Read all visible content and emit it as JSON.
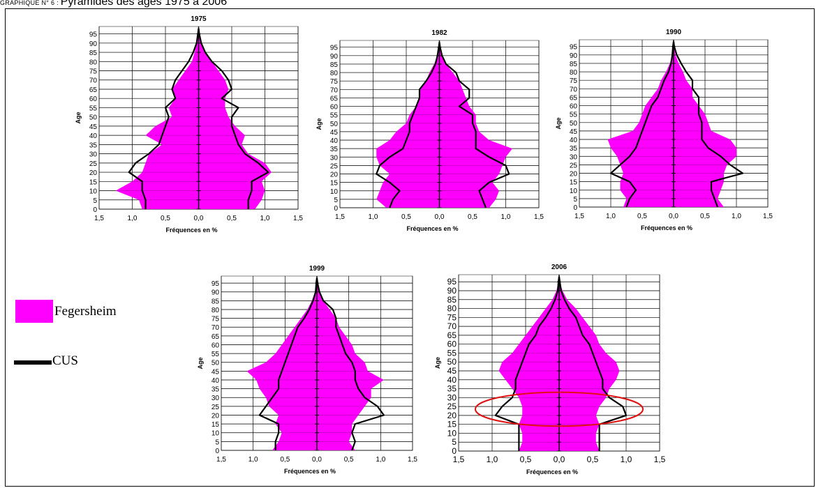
{
  "heading": {
    "prefix": "GRAPHIQUE N° 6 : ",
    "title": "Pyramides des âges 1975 à 2006"
  },
  "legend": {
    "items": [
      {
        "label": "Fegersheim",
        "color": "#ff00ff"
      },
      {
        "label": "CUS",
        "color": "#000000"
      }
    ]
  },
  "colors": {
    "fegersheim": "#ff00ff",
    "cus": "#000000",
    "highlight": "#e01010"
  },
  "chart_data": [
    {
      "type": "area",
      "title": "1975",
      "xlabel": "Fréquences en %",
      "ylabel": "Age",
      "xlim": [
        -1.5,
        1.5
      ],
      "ylim": [
        0,
        99
      ],
      "xticks": [
        "1,5",
        "1,0",
        "0,5",
        "0,0",
        "0,5",
        "1,0",
        "1,5"
      ],
      "yticks": [
        "0",
        "5",
        "10",
        "15",
        "20",
        "25",
        "30",
        "35",
        "40",
        "45",
        "50",
        "55",
        "60",
        "65",
        "70",
        "75",
        "80",
        "85",
        "90",
        "95"
      ],
      "ages": [
        0,
        5,
        10,
        15,
        20,
        25,
        30,
        35,
        40,
        45,
        50,
        55,
        60,
        65,
        70,
        75,
        80,
        85,
        90,
        95,
        98
      ],
      "series": [
        {
          "name": "Fegersheim",
          "male": [
            0.85,
            0.9,
            1.25,
            1.0,
            0.85,
            0.8,
            0.75,
            0.55,
            0.8,
            0.65,
            0.4,
            0.45,
            0.35,
            0.4,
            0.3,
            0.2,
            0.1,
            0.06,
            0.03,
            0.01,
            0
          ],
          "female": [
            0.85,
            0.95,
            1.0,
            0.95,
            1.1,
            1.0,
            0.75,
            0.65,
            0.7,
            0.55,
            0.45,
            0.4,
            0.4,
            0.45,
            0.4,
            0.3,
            0.2,
            0.1,
            0.04,
            0.01,
            0
          ]
        },
        {
          "name": "CUS",
          "male": [
            0.8,
            0.8,
            0.85,
            0.85,
            1.05,
            0.95,
            0.75,
            0.6,
            0.55,
            0.5,
            0.45,
            0.5,
            0.35,
            0.4,
            0.35,
            0.25,
            0.15,
            0.08,
            0.03,
            0.01,
            0
          ],
          "female": [
            0.75,
            0.75,
            0.8,
            0.8,
            1.05,
            0.9,
            0.7,
            0.6,
            0.55,
            0.5,
            0.5,
            0.6,
            0.35,
            0.5,
            0.45,
            0.35,
            0.2,
            0.1,
            0.04,
            0.01,
            0
          ]
        }
      ]
    },
    {
      "type": "area",
      "title": "1982",
      "xlabel": "Fréquences en %",
      "ylabel": "Age",
      "xlim": [
        -1.5,
        1.5
      ],
      "ylim": [
        0,
        99
      ],
      "xticks": [
        "1,5",
        "1,0",
        "0,5",
        "0,0",
        "0,5",
        "1,0",
        "1,5"
      ],
      "yticks": [
        "0",
        "5",
        "10",
        "15",
        "20",
        "25",
        "30",
        "35",
        "40",
        "45",
        "50",
        "55",
        "60",
        "65",
        "70",
        "75",
        "80",
        "85",
        "90",
        "95"
      ],
      "ages": [
        0,
        5,
        10,
        15,
        20,
        25,
        30,
        35,
        40,
        45,
        50,
        55,
        60,
        65,
        70,
        75,
        80,
        85,
        90,
        95,
        98
      ],
      "series": [
        {
          "name": "Fegersheim",
          "male": [
            0.8,
            0.95,
            0.9,
            0.85,
            0.75,
            0.9,
            0.95,
            0.95,
            0.75,
            0.65,
            0.5,
            0.45,
            0.35,
            0.3,
            0.3,
            0.2,
            0.15,
            0.08,
            0.03,
            0.01,
            0
          ],
          "female": [
            0.75,
            0.85,
            0.9,
            0.8,
            0.9,
            0.95,
            1.0,
            1.1,
            0.75,
            0.6,
            0.55,
            0.55,
            0.45,
            0.4,
            0.35,
            0.3,
            0.2,
            0.1,
            0.04,
            0.01,
            0
          ]
        },
        {
          "name": "CUS",
          "male": [
            0.75,
            0.7,
            0.6,
            0.75,
            0.95,
            0.9,
            0.75,
            0.55,
            0.5,
            0.45,
            0.45,
            0.4,
            0.35,
            0.3,
            0.3,
            0.2,
            0.12,
            0.06,
            0.03,
            0.01,
            0
          ],
          "female": [
            0.7,
            0.65,
            0.6,
            0.75,
            1.05,
            1.0,
            0.75,
            0.55,
            0.55,
            0.55,
            0.5,
            0.5,
            0.3,
            0.45,
            0.45,
            0.3,
            0.25,
            0.1,
            0.04,
            0.01,
            0
          ]
        }
      ]
    },
    {
      "type": "area",
      "title": "1990",
      "xlabel": "Fréquences en %",
      "ylabel": "Age",
      "xlim": [
        -1.5,
        1.5
      ],
      "ylim": [
        0,
        99
      ],
      "xticks": [
        "1,5",
        "1,0",
        "0,5",
        "0,0",
        "0,5",
        "1,0",
        "1,5"
      ],
      "yticks": [
        "0",
        "5",
        "10",
        "15",
        "20",
        "25",
        "30",
        "35",
        "40",
        "45",
        "50",
        "55",
        "60",
        "65",
        "70",
        "75",
        "80",
        "85",
        "90",
        "95"
      ],
      "ages": [
        0,
        5,
        10,
        15,
        20,
        25,
        30,
        35,
        40,
        45,
        50,
        55,
        60,
        65,
        70,
        75,
        80,
        85,
        90,
        95,
        98
      ],
      "series": [
        {
          "name": "Fegersheim",
          "male": [
            0.8,
            0.75,
            0.85,
            0.85,
            0.8,
            0.85,
            0.9,
            1.0,
            1.05,
            0.65,
            0.55,
            0.5,
            0.45,
            0.35,
            0.25,
            0.2,
            0.12,
            0.06,
            0.02,
            0.01,
            0
          ],
          "female": [
            0.8,
            0.7,
            0.75,
            0.8,
            0.8,
            0.85,
            1.0,
            1.0,
            0.9,
            0.6,
            0.55,
            0.5,
            0.4,
            0.3,
            0.3,
            0.2,
            0.15,
            0.08,
            0.03,
            0.01,
            0
          ]
        },
        {
          "name": "CUS",
          "male": [
            0.75,
            0.7,
            0.6,
            0.7,
            1.0,
            0.85,
            0.7,
            0.6,
            0.55,
            0.5,
            0.45,
            0.4,
            0.35,
            0.25,
            0.2,
            0.15,
            0.08,
            0.04,
            0.02,
            0.01,
            0
          ],
          "female": [
            0.7,
            0.65,
            0.6,
            0.6,
            1.1,
            0.9,
            0.75,
            0.55,
            0.45,
            0.45,
            0.45,
            0.4,
            0.4,
            0.4,
            0.3,
            0.3,
            0.2,
            0.12,
            0.05,
            0.01,
            0
          ]
        }
      ]
    },
    {
      "type": "area",
      "title": "1999",
      "xlabel": "Fréquences en %",
      "ylabel": "Age",
      "xlim": [
        -1.5,
        1.5
      ],
      "ylim": [
        0,
        99
      ],
      "xticks": [
        "1,5",
        "1,0",
        "0,5",
        "0,0",
        "0,5",
        "1,0",
        "1,5"
      ],
      "yticks": [
        "0",
        "5",
        "10",
        "15",
        "20",
        "25",
        "30",
        "35",
        "40",
        "45",
        "50",
        "55",
        "60",
        "65",
        "70",
        "75",
        "80",
        "85",
        "90",
        "95"
      ],
      "ages": [
        0,
        5,
        10,
        15,
        20,
        25,
        30,
        35,
        40,
        45,
        50,
        55,
        60,
        65,
        70,
        75,
        80,
        85,
        90,
        95,
        98
      ],
      "series": [
        {
          "name": "Fegersheim",
          "male": [
            0.7,
            0.6,
            0.55,
            0.65,
            0.6,
            0.75,
            0.8,
            0.9,
            0.95,
            1.1,
            0.8,
            0.65,
            0.55,
            0.45,
            0.35,
            0.25,
            0.15,
            0.08,
            0.03,
            0.01,
            0
          ],
          "female": [
            0.6,
            0.5,
            0.55,
            0.55,
            0.65,
            0.75,
            0.85,
            0.85,
            1.05,
            0.8,
            0.75,
            0.6,
            0.55,
            0.45,
            0.35,
            0.3,
            0.2,
            0.1,
            0.04,
            0.01,
            0
          ]
        },
        {
          "name": "CUS",
          "male": [
            0.65,
            0.65,
            0.6,
            0.6,
            0.9,
            0.8,
            0.7,
            0.6,
            0.6,
            0.55,
            0.5,
            0.45,
            0.4,
            0.35,
            0.3,
            0.2,
            0.12,
            0.06,
            0.02,
            0.01,
            0
          ],
          "female": [
            0.55,
            0.6,
            0.55,
            0.6,
            1.05,
            0.95,
            0.75,
            0.65,
            0.6,
            0.6,
            0.55,
            0.45,
            0.4,
            0.35,
            0.3,
            0.3,
            0.25,
            0.1,
            0.04,
            0.01,
            0
          ]
        }
      ]
    },
    {
      "type": "area",
      "title": "2006",
      "xlabel": "Fréquences en %",
      "ylabel": "Age",
      "xlim": [
        -1.5,
        1.5
      ],
      "ylim": [
        0,
        99
      ],
      "xticks": [
        "1,5",
        "1,0",
        "0,5",
        "0,0",
        "0,5",
        "1,0",
        "1,5"
      ],
      "yticks": [
        "0",
        "5",
        "10",
        "15",
        "20",
        "25",
        "30",
        "35",
        "40",
        "45",
        "50",
        "55",
        "60",
        "65",
        "70",
        "75",
        "80",
        "85",
        "90",
        "95"
      ],
      "ages": [
        0,
        5,
        10,
        15,
        20,
        25,
        30,
        35,
        40,
        45,
        50,
        55,
        60,
        65,
        70,
        75,
        80,
        85,
        90,
        95,
        98
      ],
      "series": [
        {
          "name": "Fegersheim",
          "male": [
            0.6,
            0.55,
            0.55,
            0.6,
            0.55,
            0.55,
            0.6,
            0.7,
            0.8,
            0.9,
            0.85,
            0.7,
            0.6,
            0.5,
            0.4,
            0.3,
            0.2,
            0.1,
            0.04,
            0.01,
            0
          ],
          "female": [
            0.6,
            0.55,
            0.55,
            0.6,
            0.55,
            0.6,
            0.7,
            0.75,
            0.85,
            0.9,
            0.85,
            0.7,
            0.6,
            0.55,
            0.45,
            0.35,
            0.25,
            0.12,
            0.05,
            0.01,
            0
          ]
        },
        {
          "name": "CUS",
          "male": [
            0.6,
            0.6,
            0.6,
            0.6,
            0.95,
            0.85,
            0.7,
            0.65,
            0.65,
            0.6,
            0.55,
            0.5,
            0.45,
            0.35,
            0.3,
            0.2,
            0.12,
            0.06,
            0.02,
            0.01,
            0
          ],
          "female": [
            0.6,
            0.6,
            0.6,
            0.6,
            1.0,
            0.95,
            0.75,
            0.65,
            0.65,
            0.6,
            0.55,
            0.5,
            0.45,
            0.35,
            0.3,
            0.25,
            0.15,
            0.08,
            0.03,
            0.01,
            0
          ]
        }
      ],
      "annotation": {
        "shape": "ellipse",
        "color": "#e01010",
        "age_range": [
          14,
          33
        ],
        "x_range": [
          -1.25,
          1.25
        ]
      }
    }
  ]
}
